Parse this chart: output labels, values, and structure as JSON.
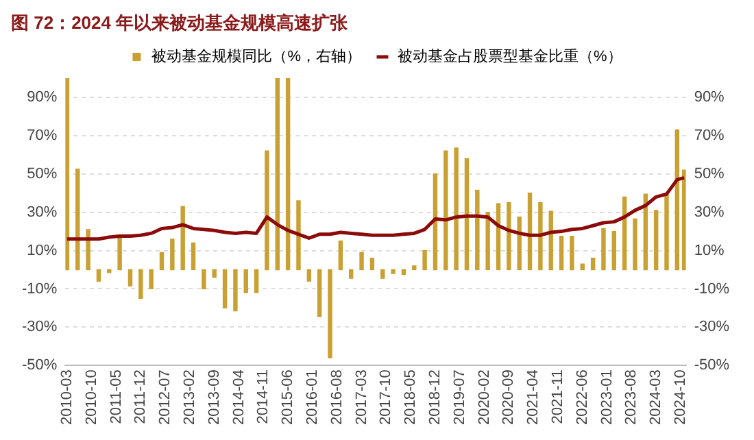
{
  "chart_data": {
    "type": "bar",
    "title": "图 72：2024 年以来被动基金规模高速扩张",
    "categories": [
      "2010-03",
      null,
      null,
      null,
      null,
      null,
      null,
      "2010-10",
      null,
      null,
      null,
      null,
      null,
      null,
      "2011-05",
      null,
      null,
      null,
      null,
      null,
      null,
      "2011-12",
      null,
      null,
      null,
      null,
      null,
      null,
      "2012-07",
      null,
      null,
      null,
      null,
      null,
      null,
      "2013-02",
      null,
      null,
      null,
      null,
      null,
      null,
      "2013-09",
      null,
      null,
      null,
      null,
      null,
      null,
      "2014-04",
      null,
      null,
      null,
      null,
      null,
      null,
      "2014-11",
      null,
      null,
      null,
      null,
      null,
      null,
      "2015-06",
      null,
      null,
      null,
      null,
      null,
      null,
      "2016-01",
      null,
      null,
      null,
      null,
      null,
      null,
      "2016-08",
      null,
      null,
      null,
      null,
      null,
      null,
      "2017-03",
      null,
      null,
      null,
      null,
      null,
      null,
      "2017-10",
      null,
      null,
      null,
      null,
      null,
      null,
      "2018-05",
      null,
      null,
      null,
      null,
      null,
      null,
      "2018-12",
      null,
      null,
      null,
      null,
      null,
      null,
      "2019-07",
      null,
      null,
      null,
      null,
      null,
      null,
      "2020-02",
      null,
      null,
      null,
      null,
      null,
      null,
      "2020-09",
      null,
      null,
      null,
      null,
      null,
      null,
      "2021-04",
      null,
      null,
      null,
      null,
      null,
      null,
      "2021-11",
      null,
      null,
      null,
      null,
      null,
      null,
      "2022-06",
      null,
      null,
      null,
      null,
      null,
      null,
      "2023-01",
      null,
      null,
      null,
      null,
      null,
      null,
      "2023-08",
      null,
      null,
      null,
      null,
      null,
      null,
      "2024-03",
      null,
      null,
      null,
      null,
      null,
      null,
      "2024-10",
      null
    ],
    "series": [
      {
        "name": "被动基金规模同比（%，右轴）",
        "axis": "y2",
        "color": "#c9a032",
        "values": [
          100,
          null,
          null,
          52.5,
          null,
          null,
          21,
          null,
          null,
          -6,
          null,
          null,
          -1.5,
          null,
          null,
          16.5,
          null,
          null,
          -8.5,
          null,
          null,
          -15,
          null,
          null,
          -10,
          null,
          null,
          9,
          null,
          null,
          16,
          null,
          null,
          33,
          null,
          null,
          14,
          null,
          null,
          -10,
          null,
          null,
          -4,
          null,
          null,
          -20,
          null,
          null,
          -21.5,
          null,
          null,
          -12,
          null,
          null,
          -12,
          null,
          null,
          62,
          null,
          null,
          100,
          null,
          null,
          100,
          null,
          null,
          36,
          null,
          null,
          -6,
          null,
          null,
          -24.5,
          null,
          null,
          -46,
          null,
          null,
          15,
          null,
          null,
          -4.5,
          null,
          null,
          9,
          null,
          null,
          6,
          null,
          null,
          -4.5,
          null,
          null,
          -2,
          null,
          null,
          -2.5,
          null,
          null,
          2,
          null,
          null,
          10,
          null,
          null,
          50,
          null,
          null,
          62,
          null,
          null,
          63.5,
          null,
          null,
          58,
          null,
          null,
          41.5,
          null,
          null,
          30,
          null,
          null,
          34.5,
          null,
          null,
          35,
          null,
          null,
          27.5,
          null,
          null,
          40,
          null,
          null,
          35,
          null,
          null,
          30.5,
          null,
          null,
          17.5,
          null,
          null,
          17.5,
          null,
          null,
          3,
          null,
          null,
          6,
          null,
          null,
          21.5,
          null,
          null,
          20,
          null,
          null,
          38,
          null,
          null,
          26.5,
          null,
          null,
          39.5,
          null,
          null,
          31,
          null,
          null,
          39.5,
          null,
          null,
          73,
          null,
          52
        ]
      },
      {
        "name": "被动基金占股票型基金比重（%）",
        "type": "line",
        "color": "#8b0a0a",
        "values": [
          16,
          null,
          null,
          16,
          null,
          null,
          16,
          null,
          null,
          16,
          null,
          null,
          17,
          null,
          null,
          17.5,
          null,
          null,
          17.5,
          null,
          null,
          18,
          null,
          null,
          19,
          null,
          null,
          21.5,
          null,
          null,
          22,
          null,
          null,
          23.5,
          null,
          null,
          21.5,
          null,
          null,
          21,
          null,
          null,
          20.5,
          null,
          null,
          19.5,
          null,
          null,
          19,
          null,
          null,
          19.5,
          null,
          null,
          19,
          null,
          null,
          27.5,
          null,
          null,
          23.5,
          null,
          null,
          20.5,
          null,
          null,
          18.5,
          null,
          null,
          16.5,
          null,
          null,
          18.5,
          null,
          null,
          18.5,
          null,
          null,
          19.5,
          null,
          null,
          19,
          null,
          null,
          18.5,
          null,
          null,
          18,
          null,
          null,
          18,
          null,
          null,
          18,
          null,
          null,
          18.5,
          null,
          null,
          19,
          null,
          null,
          21,
          null,
          null,
          26.5,
          null,
          null,
          26,
          null,
          null,
          27.5,
          null,
          null,
          28,
          null,
          null,
          28,
          null,
          null,
          27.5,
          null,
          null,
          23,
          null,
          null,
          20.5,
          null,
          null,
          19,
          null,
          null,
          18,
          null,
          null,
          18,
          null,
          null,
          19.5,
          null,
          null,
          20,
          null,
          null,
          21,
          null,
          null,
          21.5,
          null,
          null,
          23,
          null,
          null,
          24.5,
          null,
          null,
          25,
          null,
          null,
          27.5,
          null,
          null,
          31,
          null,
          null,
          33.5,
          null,
          null,
          38,
          null,
          null,
          39.5,
          null,
          null,
          47,
          null,
          48
        ]
      }
    ],
    "ylim": [
      -50,
      100
    ],
    "yticks": [
      {
        "value": -50,
        "label": "-50%"
      },
      {
        "value": -30,
        "label": "-30%"
      },
      {
        "value": -10,
        "label": "-10%"
      },
      {
        "value": 10,
        "label": "10%"
      },
      {
        "value": 30,
        "label": "30%"
      },
      {
        "value": 50,
        "label": "50%"
      },
      {
        "value": 70,
        "label": "70%"
      },
      {
        "value": 90,
        "label": "90%"
      }
    ],
    "y2lim": [
      -50,
      100
    ],
    "y2ticks": [
      {
        "value": -50,
        "label": "-50%"
      },
      {
        "value": -30,
        "label": "-30%"
      },
      {
        "value": -10,
        "label": "-10%"
      },
      {
        "value": 10,
        "label": "10%"
      },
      {
        "value": 30,
        "label": "30%"
      },
      {
        "value": 50,
        "label": "50%"
      },
      {
        "value": 70,
        "label": "70%"
      },
      {
        "value": 90,
        "label": "90%"
      }
    ],
    "grid": "y",
    "legend": "top",
    "marker": "none",
    "line_style": "solid"
  }
}
